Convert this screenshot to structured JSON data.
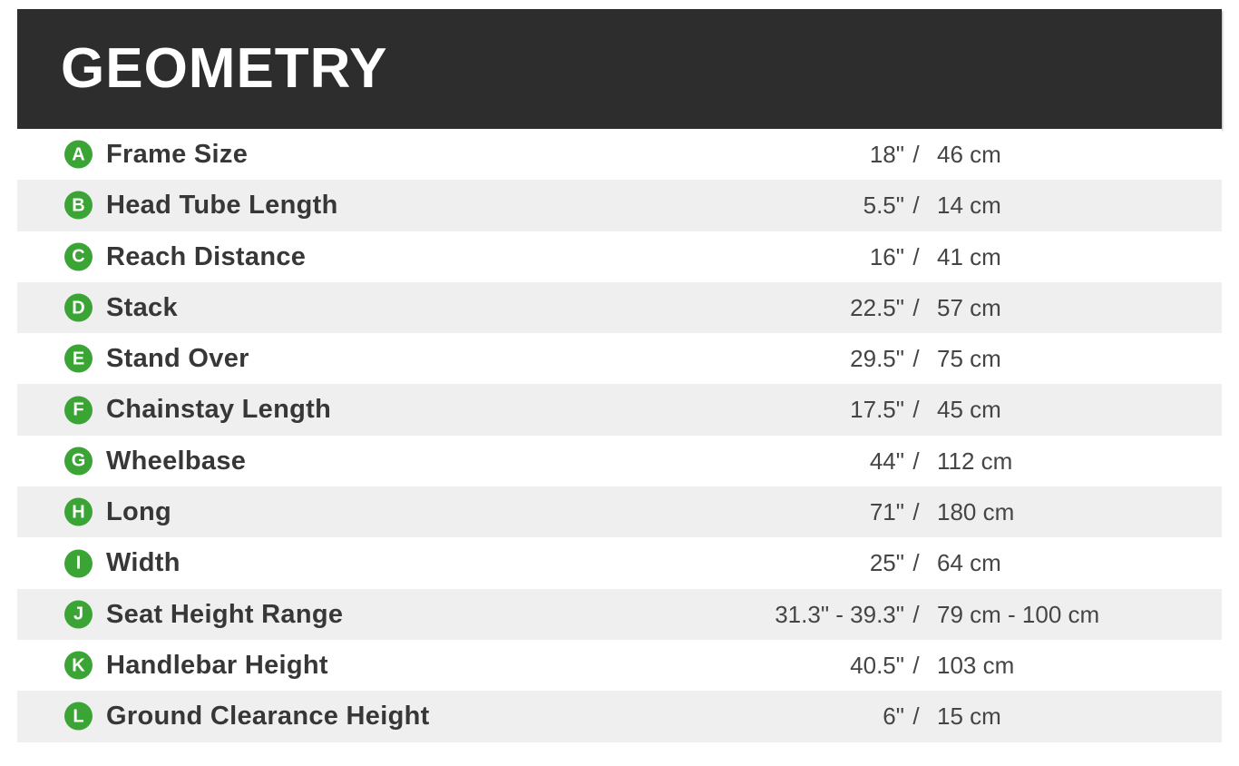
{
  "header": {
    "title": "GEOMETRY",
    "background_color": "#2d2d2d",
    "text_color": "#ffffff"
  },
  "table": {
    "separator": "/",
    "badge_color": "#3aa535",
    "stripe_color": "#efefef",
    "rows": [
      {
        "letter": "A",
        "label": "Frame Size",
        "imperial": "18\"",
        "metric": "46 cm"
      },
      {
        "letter": "B",
        "label": "Head Tube Length",
        "imperial": "5.5\"",
        "metric": "14 cm"
      },
      {
        "letter": "C",
        "label": "Reach Distance",
        "imperial": "16\"",
        "metric": "41 cm"
      },
      {
        "letter": "D",
        "label": "Stack",
        "imperial": "22.5\"",
        "metric": "57 cm"
      },
      {
        "letter": "E",
        "label": "Stand Over",
        "imperial": "29.5\"",
        "metric": "75 cm"
      },
      {
        "letter": "F",
        "label": "Chainstay Length",
        "imperial": "17.5\"",
        "metric": "45 cm"
      },
      {
        "letter": "G",
        "label": "Wheelbase",
        "imperial": "44\"",
        "metric": "112 cm"
      },
      {
        "letter": "H",
        "label": "Long",
        "imperial": "71\"",
        "metric": "180 cm"
      },
      {
        "letter": "I",
        "label": "Width",
        "imperial": "25\"",
        "metric": "64 cm"
      },
      {
        "letter": "J",
        "label": "Seat Height Range",
        "imperial": "31.3\" - 39.3\"",
        "metric": "79 cm - 100 cm"
      },
      {
        "letter": "K",
        "label": "Handlebar Height",
        "imperial": "40.5\"",
        "metric": "103 cm"
      },
      {
        "letter": "L",
        "label": "Ground Clearance Height",
        "imperial": "6\"",
        "metric": "15 cm"
      }
    ]
  }
}
